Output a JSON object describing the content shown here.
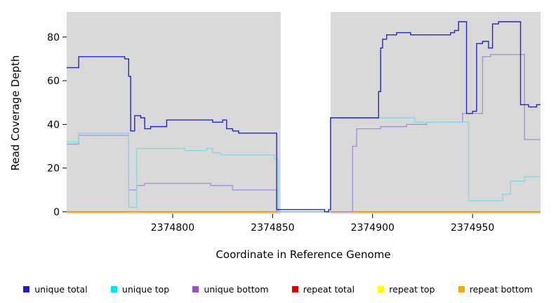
{
  "chart_data": {
    "type": "line",
    "style": "step-after",
    "title": "",
    "xlabel": "Coordinate in Reference Genome",
    "ylabel": "Read Coverage Depth",
    "xlim": [
      2374747,
      2374984
    ],
    "ylim": [
      -1,
      91.5
    ],
    "x_ticks": [
      2374800,
      2374850,
      2374900,
      2374950
    ],
    "y_ticks": [
      0,
      20,
      40,
      60,
      80
    ],
    "grid": false,
    "panel_color": "#d9d9d9",
    "gap_region": [
      2374854,
      2374879
    ],
    "legend_position": "bottom",
    "series": [
      {
        "name": "repeat total",
        "color": "#d40000",
        "points": [
          [
            2374747,
            0
          ],
          [
            2374984,
            0
          ]
        ]
      },
      {
        "name": "repeat top",
        "color": "#ffff00",
        "points": [
          [
            2374747,
            0
          ],
          [
            2374984,
            0
          ]
        ]
      },
      {
        "name": "repeat bottom",
        "color": "#ff9100",
        "points": [
          [
            2374747,
            0
          ],
          [
            2374984,
            0
          ]
        ]
      },
      {
        "name": "unique bottom",
        "color": "#ab92d8",
        "points": [
          [
            2374747,
            31
          ],
          [
            2374753,
            35
          ],
          [
            2374777,
            35
          ],
          [
            2374778,
            10
          ],
          [
            2374782,
            12
          ],
          [
            2374786,
            13
          ],
          [
            2374815,
            13
          ],
          [
            2374819,
            12
          ],
          [
            2374830,
            10
          ],
          [
            2374851,
            10
          ],
          [
            2374852,
            0
          ],
          [
            2374888,
            0
          ],
          [
            2374890,
            30
          ],
          [
            2374892,
            38
          ],
          [
            2374904,
            39
          ],
          [
            2374917,
            40
          ],
          [
            2374927,
            41
          ],
          [
            2374943,
            41
          ],
          [
            2374945,
            45
          ],
          [
            2374953,
            45
          ],
          [
            2374955,
            71
          ],
          [
            2374959,
            72
          ],
          [
            2374973,
            72
          ],
          [
            2374976,
            33
          ],
          [
            2374984,
            33
          ]
        ]
      },
      {
        "name": "unique top",
        "color": "#7fdbe8",
        "points": [
          [
            2374747,
            32
          ],
          [
            2374753,
            36
          ],
          [
            2374777,
            36
          ],
          [
            2374778,
            2
          ],
          [
            2374782,
            29
          ],
          [
            2374806,
            28
          ],
          [
            2374817,
            29
          ],
          [
            2374820,
            27
          ],
          [
            2374824,
            26
          ],
          [
            2374849,
            26
          ],
          [
            2374851,
            24
          ],
          [
            2374853,
            0
          ],
          [
            2374878,
            0
          ],
          [
            2374879,
            43
          ],
          [
            2374919,
            43
          ],
          [
            2374921,
            41
          ],
          [
            2374946,
            41
          ],
          [
            2374948,
            5
          ],
          [
            2374962,
            5
          ],
          [
            2374965,
            8
          ],
          [
            2374969,
            14
          ],
          [
            2374976,
            16
          ],
          [
            2374984,
            16
          ]
        ]
      },
      {
        "name": "unique total",
        "color": "#2525cc",
        "points": [
          [
            2374747,
            66
          ],
          [
            2374753,
            71
          ],
          [
            2374776,
            70
          ],
          [
            2374778,
            62
          ],
          [
            2374779,
            37
          ],
          [
            2374781,
            44
          ],
          [
            2374784,
            43
          ],
          [
            2374786,
            38
          ],
          [
            2374789,
            39
          ],
          [
            2374797,
            42
          ],
          [
            2374820,
            41
          ],
          [
            2374825,
            42
          ],
          [
            2374827,
            38
          ],
          [
            2374830,
            37
          ],
          [
            2374833,
            36
          ],
          [
            2374852,
            1
          ],
          [
            2374876,
            0
          ],
          [
            2374878,
            1
          ],
          [
            2374879,
            43
          ],
          [
            2374903,
            55
          ],
          [
            2374904,
            75
          ],
          [
            2374905,
            79
          ],
          [
            2374907,
            81
          ],
          [
            2374912,
            82
          ],
          [
            2374919,
            81
          ],
          [
            2374939,
            82
          ],
          [
            2374941,
            83
          ],
          [
            2374943,
            87
          ],
          [
            2374947,
            45
          ],
          [
            2374950,
            46
          ],
          [
            2374952,
            77
          ],
          [
            2374955,
            78
          ],
          [
            2374958,
            75
          ],
          [
            2374960,
            86
          ],
          [
            2374963,
            87
          ],
          [
            2374974,
            49
          ],
          [
            2374978,
            48
          ],
          [
            2374982,
            49
          ],
          [
            2374984,
            49
          ]
        ]
      }
    ],
    "legend": [
      {
        "label": "unique total",
        "color": "#1c1ccd"
      },
      {
        "label": "unique top",
        "color": "#00e5ee"
      },
      {
        "label": "unique bottom",
        "color": "#9751c9"
      },
      {
        "label": "repeat total",
        "color": "#d40000"
      },
      {
        "label": "repeat top",
        "color": "#ffff00"
      },
      {
        "label": "repeat bottom",
        "color": "#ffa500"
      }
    ]
  }
}
